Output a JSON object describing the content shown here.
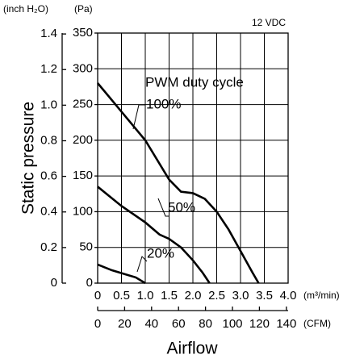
{
  "chart_data": {
    "type": "line",
    "note": "12 VDC",
    "annotation": "PWM duty cycle",
    "ylabel": "Static pressure",
    "xlabel": "Airflow",
    "y_unit_label": "(Pa)",
    "y2_unit_label": "(inch H₂O)",
    "x_unit_label": "(m³/min)",
    "x2_unit_label": "(CFM)",
    "xlim": [
      0,
      4.0
    ],
    "xticks": [
      0,
      0.5,
      {
        "value": 1.0,
        "label": "1.0"
      },
      1.5,
      {
        "value": 2.0,
        "label": "2.0"
      },
      2.5,
      {
        "value": 3.0,
        "label": "3.0"
      },
      3.5,
      {
        "value": 4.0,
        "label": "4.0"
      }
    ],
    "x2lim": [
      0,
      141.3
    ],
    "x2ticks": [
      0,
      20,
      40,
      60,
      80,
      100,
      120,
      140
    ],
    "ylim": [
      0,
      350
    ],
    "yticks": [
      0,
      50,
      100,
      150,
      200,
      250,
      300,
      350
    ],
    "y2lim": [
      0,
      1.405
    ],
    "y2ticks": [
      0,
      0.2,
      0.4,
      0.6,
      0.8,
      {
        "value": 1.0,
        "label": "1.0"
      },
      1.2,
      1.4
    ],
    "grid": true,
    "series": [
      {
        "name": "100%",
        "color": "#000000",
        "x": [
          0,
          0.5,
          1.0,
          1.5,
          1.75,
          2.0,
          2.25,
          2.5,
          2.75,
          3.0,
          3.25,
          3.38
        ],
        "values": [
          280,
          240,
          200,
          145,
          128,
          126,
          118,
          100,
          75,
          45,
          15,
          0
        ]
      },
      {
        "name": "50%",
        "color": "#000000",
        "x": [
          0,
          0.5,
          1.0,
          1.3,
          1.5,
          1.75,
          2.0,
          2.2,
          2.35
        ],
        "values": [
          135,
          108,
          85,
          68,
          62,
          50,
          32,
          15,
          0
        ]
      },
      {
        "name": "20%",
        "color": "#000000",
        "x": [
          0,
          0.3,
          0.6,
          0.8,
          1.0
        ],
        "values": [
          26,
          18,
          12,
          8,
          0
        ]
      }
    ]
  }
}
